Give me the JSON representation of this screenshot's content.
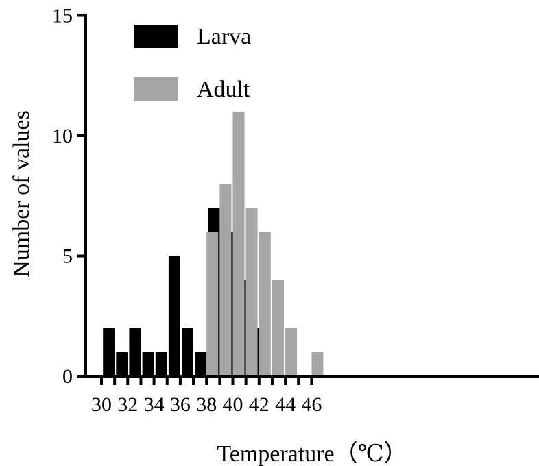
{
  "chart_data": {
    "type": "bar",
    "xlabel": "Temperature（℃）",
    "ylabel": "Number of values",
    "xlim": [
      30,
      46.5
    ],
    "ylim": [
      0,
      15
    ],
    "x_ticks": [
      "30",
      "32",
      "34",
      "36",
      "38",
      "40",
      "42",
      "44",
      "46"
    ],
    "y_ticks": [
      "0",
      "5",
      "10",
      "15"
    ],
    "legend_position": "top-left",
    "grid": false,
    "series": [
      {
        "name": "Larva",
        "color": "#000000",
        "points": [
          {
            "x": 31,
            "y": 2
          },
          {
            "x": 32,
            "y": 1
          },
          {
            "x": 33,
            "y": 2
          },
          {
            "x": 34,
            "y": 1
          },
          {
            "x": 35,
            "y": 1
          },
          {
            "x": 36,
            "y": 5
          },
          {
            "x": 37,
            "y": 2
          },
          {
            "x": 38,
            "y": 1
          },
          {
            "x": 39,
            "y": 7
          },
          {
            "x": 40,
            "y": 6
          },
          {
            "x": 41,
            "y": 4
          },
          {
            "x": 42,
            "y": 2
          }
        ]
      },
      {
        "name": "Adult",
        "color": "#a6a6a6",
        "points": [
          {
            "x": 38,
            "y": 6
          },
          {
            "x": 39,
            "y": 8
          },
          {
            "x": 40,
            "y": 11
          },
          {
            "x": 41,
            "y": 7
          },
          {
            "x": 42,
            "y": 6
          },
          {
            "x": 43,
            "y": 4
          },
          {
            "x": 44,
            "y": 2
          },
          {
            "x": 46,
            "y": 1
          }
        ]
      }
    ]
  }
}
